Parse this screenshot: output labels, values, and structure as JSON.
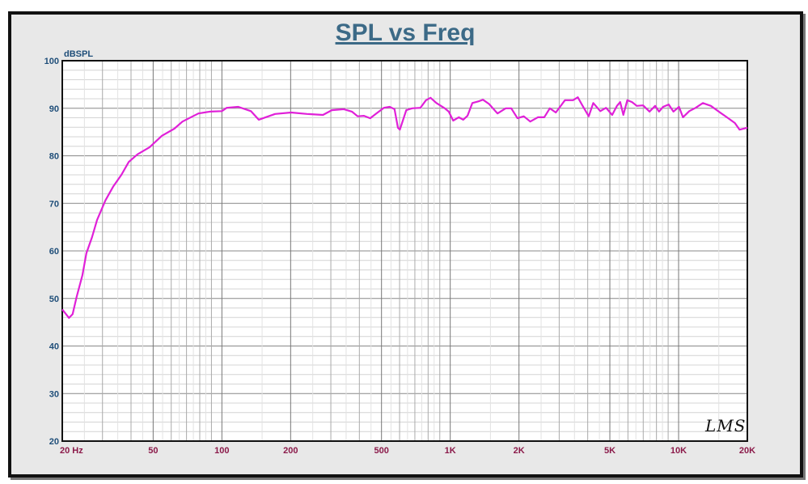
{
  "chart_data": {
    "type": "line",
    "title": "SPL vs Freq",
    "ylabel": "dBSPL",
    "xlabel": "",
    "xscale": "log",
    "xlim": [
      20,
      20000
    ],
    "ylim": [
      20,
      100
    ],
    "grid": true,
    "yticks": [
      20,
      30,
      40,
      50,
      60,
      70,
      80,
      90,
      100
    ],
    "ytick_labels": [
      "20",
      "30",
      "40",
      "50",
      "60",
      "70",
      "80",
      "90",
      "100"
    ],
    "xticks": [
      20,
      50,
      100,
      200,
      500,
      1000,
      2000,
      5000,
      10000,
      20000
    ],
    "xtick_labels": [
      "20  Hz",
      "50",
      "100",
      "200",
      "500",
      "1K",
      "2K",
      "5K",
      "10K",
      "20K"
    ],
    "line_color": "#e020d8",
    "watermark": "LMS",
    "series": [
      {
        "name": "SPL",
        "x": [
          20,
          21.4,
          22.2,
          23.1,
          24.5,
          25.5,
          27,
          28.4,
          30.9,
          33.5,
          36.3,
          39.1,
          42.7,
          48.2,
          54.6,
          61.9,
          67.2,
          78.9,
          88.6,
          100,
          105,
          118,
          134,
          145,
          171,
          201,
          236,
          277,
          303,
          342,
          371,
          393,
          419,
          446,
          472,
          512,
          543,
          570,
          590,
          602,
          642,
          682,
          740,
          783,
          820,
          870,
          946,
          985,
          1030,
          1090,
          1140,
          1190,
          1250,
          1340,
          1390,
          1480,
          1610,
          1750,
          1850,
          1970,
          2100,
          2240,
          2420,
          2580,
          2730,
          2900,
          3180,
          3450,
          3620,
          3790,
          4040,
          4230,
          4540,
          4810,
          5120,
          5370,
          5550,
          5730,
          5960,
          6250,
          6560,
          6990,
          7460,
          7890,
          8210,
          8550,
          9050,
          9490,
          10040,
          10450,
          11140,
          11880,
          12770,
          13840,
          15000,
          16270,
          17640,
          18500,
          20000
        ],
        "y": [
          47.7,
          45.9,
          46.7,
          50.3,
          54.9,
          59.5,
          62.9,
          66.5,
          70.6,
          73.6,
          76,
          78.7,
          80.3,
          81.8,
          84.2,
          85.7,
          87.2,
          88.9,
          89.3,
          89.4,
          90.1,
          90.3,
          89.4,
          87.6,
          88.8,
          89.1,
          88.8,
          88.6,
          89.6,
          89.8,
          89.3,
          88.3,
          88.4,
          87.9,
          88.8,
          90.1,
          90.3,
          89.8,
          85.9,
          85.5,
          89.6,
          90,
          90.1,
          91.7,
          92.2,
          91.1,
          90,
          89.3,
          87.4,
          88.1,
          87.6,
          88.4,
          91.1,
          91.5,
          91.8,
          90.9,
          88.9,
          90,
          90,
          87.9,
          88.3,
          87.2,
          88.1,
          88.1,
          90,
          89.1,
          91.7,
          91.7,
          92.3,
          90.6,
          88.3,
          91.1,
          89.4,
          90.1,
          88.6,
          90.5,
          91.3,
          88.6,
          91.7,
          91.3,
          90.5,
          90.6,
          89.3,
          90.5,
          89.3,
          90.3,
          90.8,
          89.3,
          90.3,
          88.1,
          89.4,
          90.1,
          91.1,
          90.5,
          89.3,
          88.1,
          86.9,
          85.5,
          85.9
        ]
      }
    ]
  }
}
